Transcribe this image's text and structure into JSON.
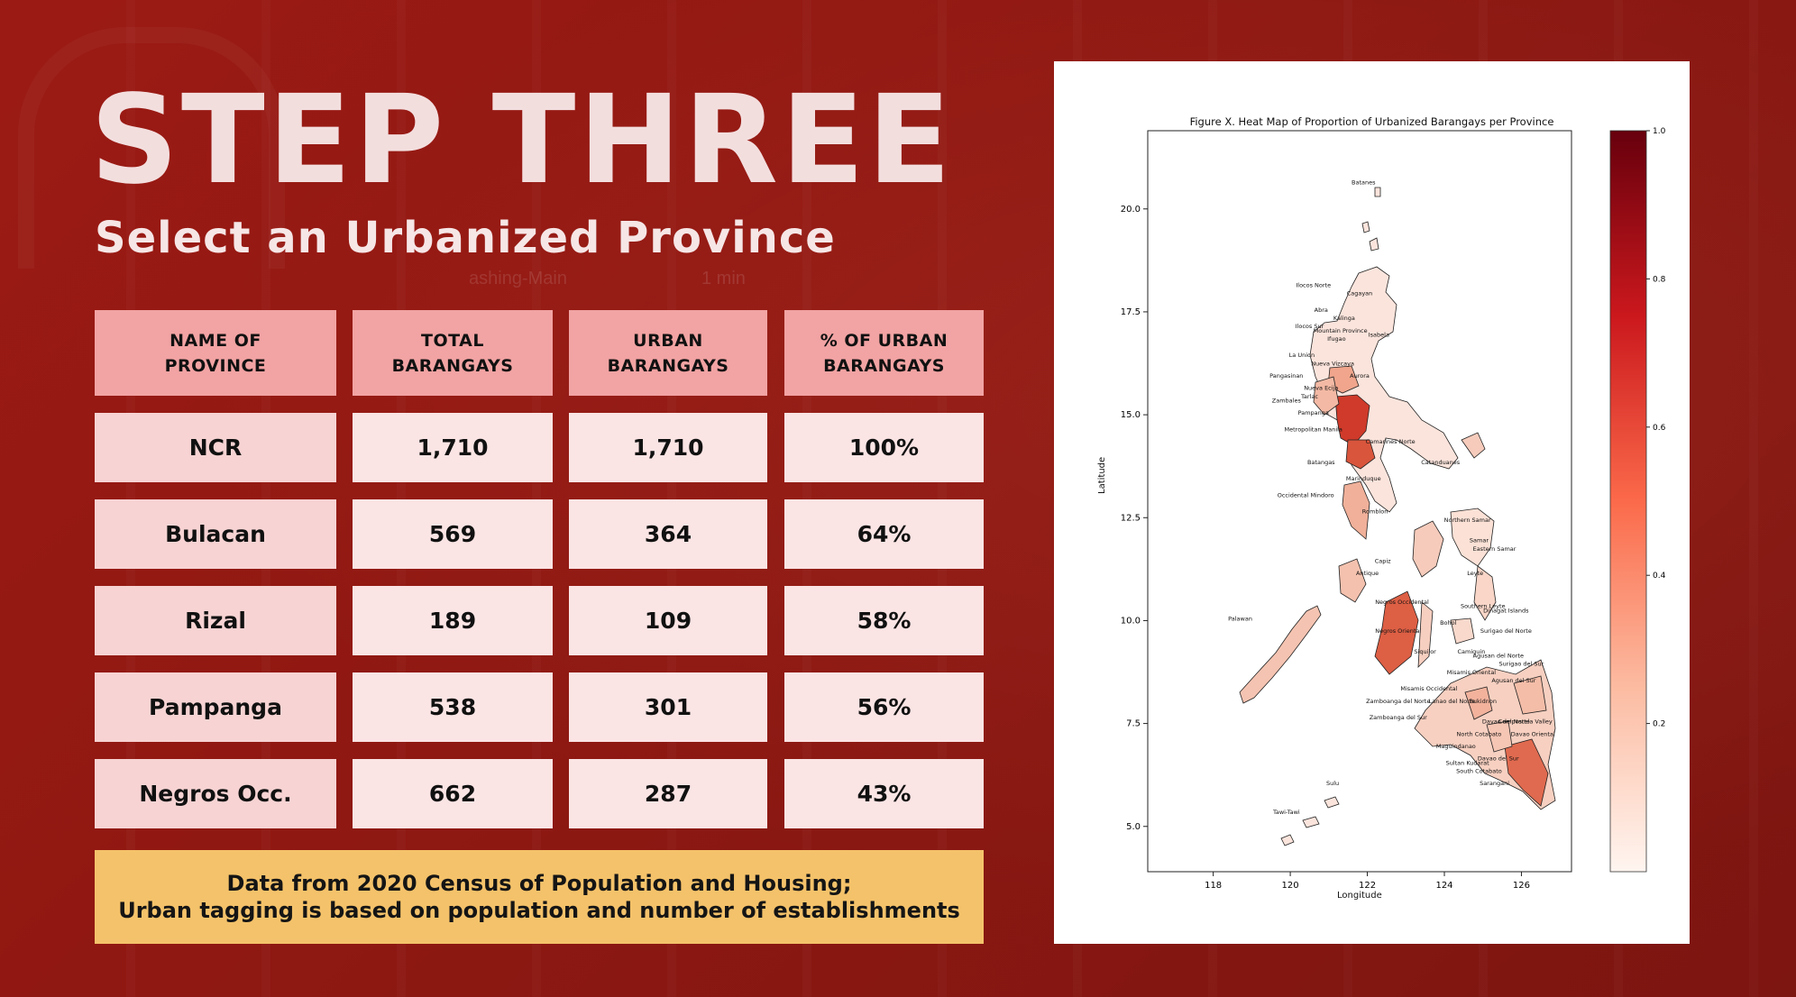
{
  "slide": {
    "title": "STEP THREE",
    "subtitle": "Select an Urbanized Province",
    "background_ghost_text": [
      "ashing-Main",
      "1 min"
    ]
  },
  "table": {
    "headers": [
      [
        "NAME OF",
        "PROVINCE"
      ],
      [
        "TOTAL",
        "BARANGAYS"
      ],
      [
        "URBAN",
        "BARANGAYS"
      ],
      [
        "% OF URBAN",
        "BARANGAYS"
      ]
    ],
    "rows": [
      {
        "name": "NCR",
        "total": "1,710",
        "urban": "1,710",
        "pct": "100%"
      },
      {
        "name": "Bulacan",
        "total": "569",
        "urban": "364",
        "pct": "64%"
      },
      {
        "name": "Rizal",
        "total": "189",
        "urban": "109",
        "pct": "58%"
      },
      {
        "name": "Pampanga",
        "total": "538",
        "urban": "301",
        "pct": "56%"
      },
      {
        "name": "Negros Occ.",
        "total": "662",
        "urban": "287",
        "pct": "43%"
      }
    ]
  },
  "note": {
    "line1": "Data from 2020 Census of Population and Housing;",
    "line2": "Urban tagging is based on population and number of establishments"
  },
  "figure": {
    "title": "Figure X. Heat Map of Proportion of Urbanized Barangays per Province",
    "xlabel": "Longitude",
    "ylabel": "Latitude",
    "colormap": "Reds",
    "colorbar_ticks": [
      "0.2",
      "0.4",
      "0.6",
      "0.8",
      "1.0"
    ],
    "x_ticks": [
      "118",
      "120",
      "122",
      "124",
      "126"
    ],
    "y_ticks": [
      "5.0",
      "7.5",
      "10.0",
      "12.5",
      "15.0",
      "17.5",
      "20.0"
    ],
    "map_labels": [
      {
        "text": "Batanes",
        "lon": 121.9,
        "lat": 20.6
      },
      {
        "text": "Ilocos Norte",
        "lon": 120.6,
        "lat": 18.1
      },
      {
        "text": "Cagayan",
        "lon": 121.8,
        "lat": 17.9
      },
      {
        "text": "Abra",
        "lon": 120.8,
        "lat": 17.5
      },
      {
        "text": "Kalinga",
        "lon": 121.4,
        "lat": 17.3
      },
      {
        "text": "Ilocos Sur",
        "lon": 120.5,
        "lat": 17.1
      },
      {
        "text": "Mountain Province",
        "lon": 121.3,
        "lat": 17.0
      },
      {
        "text": "Isabela",
        "lon": 122.3,
        "lat": 16.9
      },
      {
        "text": "Ifugao",
        "lon": 121.2,
        "lat": 16.8
      },
      {
        "text": "La Union",
        "lon": 120.3,
        "lat": 16.4
      },
      {
        "text": "Nueva Vizcaya",
        "lon": 121.1,
        "lat": 16.2
      },
      {
        "text": "Aurora",
        "lon": 121.8,
        "lat": 15.9
      },
      {
        "text": "Pangasinan",
        "lon": 119.9,
        "lat": 15.9
      },
      {
        "text": "Nueva Ecija",
        "lon": 120.8,
        "lat": 15.6
      },
      {
        "text": "Tarlac",
        "lon": 120.5,
        "lat": 15.4
      },
      {
        "text": "Zambales",
        "lon": 119.9,
        "lat": 15.3
      },
      {
        "text": "Pampanga",
        "lon": 120.6,
        "lat": 15.0
      },
      {
        "text": "Metropolitan Manila",
        "lon": 120.6,
        "lat": 14.6
      },
      {
        "text": "Batangas",
        "lon": 120.8,
        "lat": 13.8
      },
      {
        "text": "Camarines Norte",
        "lon": 122.6,
        "lat": 14.3
      },
      {
        "text": "Catanduanes",
        "lon": 123.9,
        "lat": 13.8
      },
      {
        "text": "Marinduque",
        "lon": 121.9,
        "lat": 13.4
      },
      {
        "text": "Occidental Mindoro",
        "lon": 120.4,
        "lat": 13.0
      },
      {
        "text": "Romblon",
        "lon": 122.2,
        "lat": 12.6
      },
      {
        "text": "Northern Samar",
        "lon": 124.6,
        "lat": 12.4
      },
      {
        "text": "Samar",
        "lon": 124.9,
        "lat": 11.9
      },
      {
        "text": "Eastern Samar",
        "lon": 125.3,
        "lat": 11.7
      },
      {
        "text": "Capiz",
        "lon": 122.4,
        "lat": 11.4
      },
      {
        "text": "Antique",
        "lon": 122.0,
        "lat": 11.1
      },
      {
        "text": "Leyte",
        "lon": 124.8,
        "lat": 11.1
      },
      {
        "text": "Negros Occidental",
        "lon": 122.9,
        "lat": 10.4
      },
      {
        "text": "Southern Leyte",
        "lon": 125.0,
        "lat": 10.3
      },
      {
        "text": "Dinagat Islands",
        "lon": 125.6,
        "lat": 10.2
      },
      {
        "text": "Palawan",
        "lon": 118.7,
        "lat": 10.0
      },
      {
        "text": "Bohol",
        "lon": 124.1,
        "lat": 9.9
      },
      {
        "text": "Surigao del Norte",
        "lon": 125.6,
        "lat": 9.7
      },
      {
        "text": "Negros Oriental",
        "lon": 122.8,
        "lat": 9.7
      },
      {
        "text": "Siquijor",
        "lon": 123.5,
        "lat": 9.2
      },
      {
        "text": "Camiguin",
        "lon": 124.7,
        "lat": 9.2
      },
      {
        "text": "Agusan del Norte",
        "lon": 125.4,
        "lat": 9.1
      },
      {
        "text": "Surigao del Sur",
        "lon": 126.0,
        "lat": 8.9
      },
      {
        "text": "Misamis Oriental",
        "lon": 124.7,
        "lat": 8.7
      },
      {
        "text": "Agusan del Sur",
        "lon": 125.8,
        "lat": 8.5
      },
      {
        "text": "Misamis Occidental",
        "lon": 123.6,
        "lat": 8.3
      },
      {
        "text": "Zamboanga del Norte",
        "lon": 122.8,
        "lat": 8.0
      },
      {
        "text": "Lanao del Norte",
        "lon": 124.2,
        "lat": 8.0
      },
      {
        "text": "Bukidnon",
        "lon": 125.0,
        "lat": 8.0
      },
      {
        "text": "Zamboanga del Sur",
        "lon": 122.8,
        "lat": 7.6
      },
      {
        "text": "Davao del Norte",
        "lon": 125.6,
        "lat": 7.5
      },
      {
        "text": "Compostela Valley",
        "lon": 126.1,
        "lat": 7.5
      },
      {
        "text": "Davao Oriental",
        "lon": 126.3,
        "lat": 7.2
      },
      {
        "text": "North Cotabato",
        "lon": 124.9,
        "lat": 7.2
      },
      {
        "text": "Maguindanao",
        "lon": 124.3,
        "lat": 6.9
      },
      {
        "text": "Davao del Sur",
        "lon": 125.4,
        "lat": 6.6
      },
      {
        "text": "Sultan Kudarat",
        "lon": 124.6,
        "lat": 6.5
      },
      {
        "text": "South Cotabato",
        "lon": 124.9,
        "lat": 6.3
      },
      {
        "text": "Sarangani",
        "lon": 125.3,
        "lat": 6.0
      },
      {
        "text": "Sulu",
        "lon": 121.1,
        "lat": 6.0
      },
      {
        "text": "Tawi-Tawi",
        "lon": 119.9,
        "lat": 5.3
      }
    ]
  },
  "colors": {
    "background": "#911913",
    "title_text": "#f3dede",
    "header_cell": "#f2a3a3",
    "name_cell": "#f7d3d3",
    "value_cell": "#fbe4e4",
    "note_bg": "#f4c26a",
    "colorbar_high": "#67000d",
    "colorbar_low": "#fff5f0"
  }
}
